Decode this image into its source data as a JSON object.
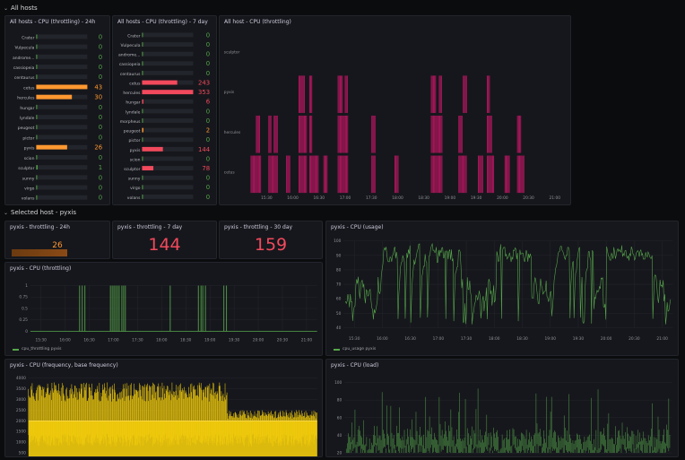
{
  "rows": {
    "all_hosts": "All hosts",
    "selected_host": "Selected host - pyxis"
  },
  "colors": {
    "orange": "#ff9830",
    "red": "#f2495c",
    "green": "#56a64b",
    "magenta": "#b3175f",
    "yellow": "#f2cc0c"
  },
  "panels": {
    "throttle_24h": {
      "title": "All hosts - CPU (throttling) - 24h",
      "hosts": [
        "Crater",
        "Vulpecula",
        "andromeda",
        "cassiopeia",
        "centaurus",
        "cetus",
        "hercules",
        "hungar",
        "lyndale",
        "peugeot",
        "pictor",
        "pyxis",
        "scion",
        "sculptor",
        "sunny",
        "virgo",
        "volans"
      ],
      "label_text": [
        "Crater",
        "Vulpecula",
        "androme...",
        "cassiopeia",
        "centaurus",
        "cetus",
        "hercules",
        "hungar",
        "lyndale",
        "peugeot",
        "pictor",
        "pyxis",
        "scion",
        "sculptor",
        "sunny",
        "virgo",
        "volans"
      ],
      "values": [
        0,
        0,
        0,
        0,
        0,
        43,
        30,
        0,
        0,
        0,
        0,
        26,
        0,
        1,
        0,
        0,
        0
      ],
      "max": 43
    },
    "throttle_7d": {
      "title": "All hosts - CPU (throttling) - 7 day",
      "label_text": [
        "Crater",
        "Vulpecula",
        "androme...",
        "cassiopeia",
        "centaurus",
        "cetus",
        "hercules",
        "hungar",
        "lyndale",
        "morpheus",
        "peugeot",
        "pictor",
        "pyxis",
        "scion",
        "sculptor",
        "sunny",
        "virgo",
        "volans"
      ],
      "values": [
        0,
        0,
        0,
        0,
        0,
        243,
        353,
        6,
        0,
        0,
        2,
        0,
        144,
        0,
        78,
        0,
        0,
        0
      ],
      "max": 353
    },
    "throttle_timeline": {
      "title": "All host - CPU (throttling)",
      "hosts": [
        "sculptor",
        "pyxis",
        "hercules",
        "cetus"
      ],
      "x_ticks": [
        "15:30",
        "16:00",
        "16:30",
        "17:00",
        "17:30",
        "18:00",
        "18:30",
        "19:00",
        "19:30",
        "20:00",
        "20:30",
        "21:00"
      ]
    },
    "stat_24h": {
      "title": "pyxis - throttling - 24h",
      "value": "26",
      "fill": 0.6
    },
    "stat_7d": {
      "title": "pyxis - throttling - 7 day",
      "value": "144"
    },
    "stat_30d": {
      "title": "pyxis - throttling - 30 day",
      "value": "159"
    },
    "cpu_throttling": {
      "title": "pyxis - CPU (throttling)",
      "y_ticks": [
        "1",
        "0.75",
        "0.5",
        "0.25",
        "0"
      ],
      "x_ticks": [
        "15:30",
        "16:00",
        "16:30",
        "17:00",
        "17:30",
        "18:00",
        "18:30",
        "19:00",
        "19:30",
        "20:00",
        "20:30",
        "21:00"
      ],
      "legend": "cpu_throttling pyxis"
    },
    "cpu_usage": {
      "title": "pyxis - CPU (usage)",
      "y_ticks": [
        "100",
        "90",
        "80",
        "70",
        "60",
        "50",
        "40"
      ],
      "x_ticks": [
        "15:30",
        "16:00",
        "16:30",
        "17:00",
        "17:30",
        "18:00",
        "18:30",
        "19:00",
        "19:30",
        "20:00",
        "20:30",
        "21:00"
      ],
      "legend": "cpu_usage pyxis"
    },
    "cpu_freq": {
      "title": "pyxis - CPU (frequency, base frequency)",
      "y_ticks": [
        "4000",
        "3500",
        "3000",
        "2500",
        "2000",
        "1500",
        "1000",
        "500"
      ]
    },
    "cpu_load": {
      "title": "pyxis - CPU (load)",
      "y_ticks": [
        "100",
        "80",
        "60",
        "40",
        "20"
      ]
    }
  }
}
